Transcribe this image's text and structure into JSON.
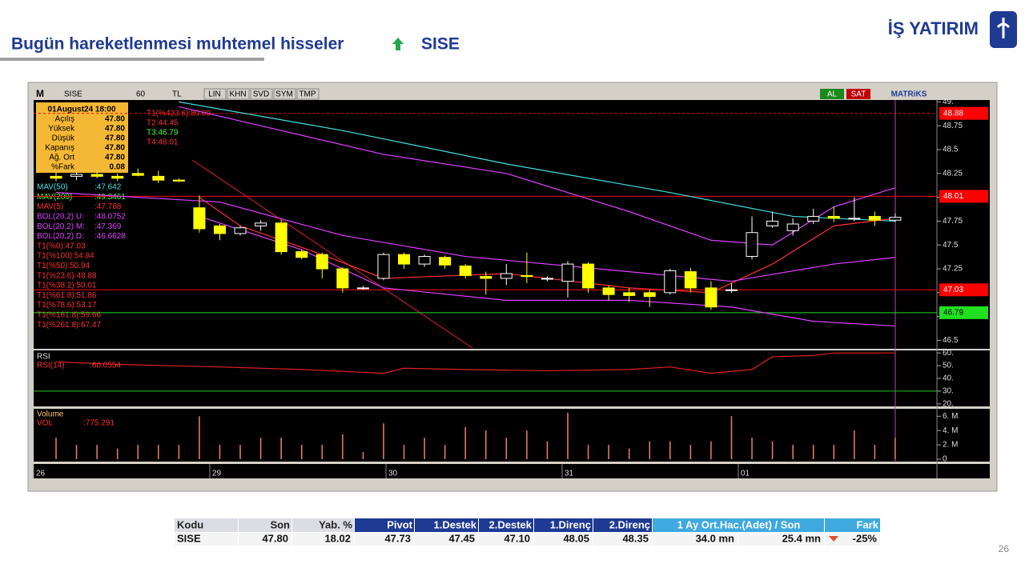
{
  "header": {
    "title": "Bugün hareketlenmesi muhtemel hisseler",
    "symbol": "SISE",
    "logo": "İŞ YATIRIM"
  },
  "toolbar": {
    "symbol": "SISE",
    "period": "60",
    "currency": "TL",
    "buttons": [
      "LIN",
      "KHN",
      "SVD",
      "SYM",
      "TMP"
    ],
    "buy": "AL",
    "sell": "SAT",
    "brand": "MATRiKS"
  },
  "chart": {
    "type": "candlestick",
    "info": {
      "date": "01August24 18:00",
      "rows": [
        [
          "Açılış",
          "47.80"
        ],
        [
          "Yüksek",
          "47.80"
        ],
        [
          "Düşük",
          "47.80"
        ],
        [
          "Kapanış",
          "47.80"
        ],
        [
          "Ağ. Ort",
          "47.80"
        ],
        [
          "%Fark",
          "0.08"
        ]
      ]
    },
    "annotations": [
      {
        "text": "T1(%423.6):80.09",
        "color": "#ff3030"
      },
      {
        "text": "T2:44.45",
        "color": "#ff3030"
      },
      {
        "text": "T3:46.79",
        "color": "#40ff40"
      },
      {
        "text": "T4:48.01",
        "color": "#ff3030"
      }
    ],
    "legend": [
      {
        "name": "MAV(50)",
        "value": ":47.642",
        "color": "#40e0e0"
      },
      {
        "name": "MAV(200)",
        "value": ":49.3461",
        "color": "#40ff40"
      },
      {
        "name": "MAV(5)",
        "value": ":47.768",
        "color": "#ff3030"
      },
      {
        "name": "BOL(20,2) U:",
        "value": ":48.0752",
        "color": "#e040ff"
      },
      {
        "name": "BOL(20,2) M:",
        "value": ":47.369",
        "color": "#e040ff"
      },
      {
        "name": "BOL(20,2) D:",
        "value": ":46.6628",
        "color": "#e040ff"
      }
    ],
    "fib": [
      "T1(%0):47.03",
      "T1(%100):54.84",
      "T1(%50):50.94",
      "T1(%23.6):48.88",
      "T1(%38.2):50.01",
      "T1(%61.8):51.86",
      "T1(%78.6):53.17",
      "T1(%161.8):59.66",
      "T1(%261.8):67.47"
    ],
    "open": [
      48.22,
      48.22,
      48.24,
      48.22,
      48.25,
      48.22,
      48.18,
      47.89,
      47.7,
      47.62,
      47.7,
      47.73,
      47.43,
      47.4,
      47.25,
      47.05,
      47.15,
      47.4,
      47.3,
      47.37,
      47.28,
      47.17,
      47.15,
      47.18,
      47.15,
      47.12,
      47.3,
      47.05,
      47.0,
      47.0,
      47.0,
      47.22,
      47.05,
      47.03,
      47.38,
      47.7,
      47.65,
      47.75,
      47.8,
      47.78,
      47.8,
      47.76
    ],
    "high": [
      48.27,
      48.26,
      48.28,
      48.25,
      48.3,
      48.28,
      48.2,
      48.02,
      47.72,
      47.7,
      47.76,
      47.76,
      47.45,
      47.42,
      47.27,
      47.07,
      47.42,
      47.42,
      47.4,
      47.39,
      47.3,
      47.22,
      47.3,
      47.42,
      47.17,
      47.33,
      47.32,
      47.08,
      47.05,
      47.03,
      47.25,
      47.26,
      47.12,
      47.1,
      47.8,
      47.85,
      47.78,
      47.88,
      47.9,
      48.0,
      47.85,
      47.83
    ],
    "low": [
      48.17,
      48.18,
      48.2,
      48.17,
      48.22,
      48.15,
      48.16,
      47.63,
      47.55,
      47.6,
      47.65,
      47.4,
      47.35,
      47.15,
      47.0,
      47.03,
      47.13,
      47.25,
      47.27,
      47.25,
      47.15,
      46.98,
      47.08,
      47.1,
      47.12,
      46.95,
      47.0,
      46.92,
      46.9,
      46.85,
      46.98,
      47.0,
      46.82,
      47.0,
      47.35,
      47.68,
      47.6,
      47.72,
      47.74,
      47.75,
      47.7,
      47.74
    ],
    "close": [
      48.2,
      48.24,
      48.22,
      48.2,
      48.23,
      48.18,
      48.17,
      47.67,
      47.62,
      47.68,
      47.73,
      47.43,
      47.37,
      47.25,
      47.05,
      47.05,
      47.4,
      47.3,
      47.38,
      47.29,
      47.18,
      47.15,
      47.2,
      47.17,
      47.15,
      47.3,
      47.05,
      46.98,
      46.97,
      46.96,
      47.23,
      47.05,
      46.85,
      47.03,
      47.63,
      47.75,
      47.72,
      47.8,
      47.78,
      47.78,
      47.76,
      47.79
    ],
    "lines": [
      {
        "legend": 0,
        "x": [
          6,
          14,
          22,
          30,
          36,
          41
        ],
        "values": [
          49.0,
          48.7,
          48.35,
          48.05,
          47.8,
          47.75
        ]
      },
      {
        "legend": 2,
        "x": [
          7,
          9,
          13,
          16,
          22,
          28,
          32,
          35,
          38,
          41
        ],
        "values": [
          48.0,
          47.7,
          47.4,
          47.15,
          47.2,
          47.05,
          47.0,
          47.3,
          47.7,
          47.78
        ]
      },
      {
        "legend": 3,
        "x": [
          6,
          10,
          16,
          22,
          28,
          32,
          35,
          38,
          41
        ],
        "values": [
          48.95,
          48.75,
          48.45,
          48.25,
          47.85,
          47.55,
          47.5,
          47.9,
          48.1
        ]
      },
      {
        "legend": 4,
        "x": [
          0,
          8,
          14,
          20,
          28,
          33,
          38,
          41
        ],
        "values": [
          48.05,
          47.95,
          47.6,
          47.38,
          47.22,
          47.12,
          47.3,
          47.37
        ]
      },
      {
        "legend": 5,
        "x": [
          7,
          12,
          16,
          22,
          28,
          33,
          37,
          41
        ],
        "values": [
          47.8,
          47.45,
          47.05,
          46.92,
          46.92,
          46.85,
          46.7,
          46.65
        ]
      }
    ],
    "ylim": [
      46.42,
      49.02
    ],
    "yticks": [
      {
        "value": 49,
        "label": "49."
      },
      48.75,
      48.5,
      48.25,
      48,
      47.75,
      47.5,
      47.25,
      47,
      46.75,
      46.5
    ],
    "tags": [
      {
        "value": 48.88,
        "color": "#ff0000"
      },
      {
        "value": 48.01,
        "color": "#ff0000"
      },
      {
        "value": 47.03,
        "color": "#ff0000"
      },
      {
        "value": 46.79,
        "color": "#20e020"
      }
    ],
    "rsi": {
      "title": "RSI",
      "label": "RSI(14)",
      "value": ":60.0554",
      "x": [
        0,
        3,
        8,
        12,
        16,
        17,
        20,
        24,
        28,
        30,
        32,
        34,
        35,
        37,
        38,
        41
      ],
      "values": [
        53,
        51,
        49,
        47,
        44,
        48,
        47,
        46,
        47,
        49,
        44,
        47,
        57,
        58,
        60,
        60
      ],
      "ylim": [
        18,
        62
      ],
      "yticks": [
        {
          "value": 60,
          "label": "60."
        },
        {
          "value": 50,
          "label": "50."
        },
        {
          "value": 40,
          "label": "40."
        },
        {
          "value": 30,
          "label": "30."
        },
        {
          "value": 20,
          "label": "20."
        }
      ]
    },
    "volume": {
      "title": "Volume",
      "label": "VOL",
      "value": ":775.291",
      "values": [
        3,
        2,
        2,
        1.5,
        2,
        2,
        2,
        6,
        2,
        2,
        3,
        3,
        2,
        2,
        3.5,
        1,
        5,
        2,
        3,
        2,
        4.5,
        4,
        3,
        4,
        2.5,
        6.5,
        2,
        2,
        1.5,
        2.5,
        2.5,
        2,
        2.5,
        6,
        3,
        2.5,
        2,
        2,
        2,
        4,
        2,
        3
      ],
      "ylim": [
        0,
        6.7
      ],
      "yticks": [
        {
          "value": 6,
          "label": "6. M"
        },
        {
          "value": 4,
          "label": "4. M"
        },
        {
          "value": 2,
          "label": "2. M"
        },
        0
      ]
    },
    "xlabels": [
      "26",
      "29",
      "30",
      "31",
      "01"
    ]
  },
  "table": {
    "headers": [
      "Kodu",
      "Son",
      "Yab. %",
      "Pivot",
      "1.Destek",
      "2.Destek",
      "1.Direnç",
      "2.Direnç",
      "1 Ay Ort.Hac.(Adet)  /  Son",
      "Fark"
    ],
    "row": [
      "SISE",
      "47.80",
      "18.02",
      "47.73",
      "47.45",
      "47.10",
      "48.05",
      "48.35",
      "34.0 mn",
      "25.4 mn",
      "-25%"
    ]
  },
  "page": "26"
}
